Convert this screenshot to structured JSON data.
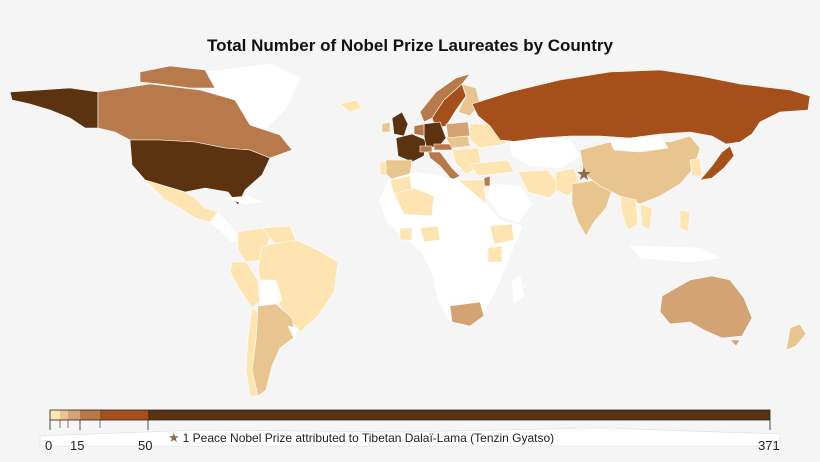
{
  "title": "Total Number of Nobel Prize Laureates by Country",
  "palette": {
    "background": "#f5f5f5",
    "none": "#ffffff",
    "tier1": "#fde4b0",
    "tier2": "#e8c48f",
    "tier3": "#d4a373",
    "tier4": "#b87a4b",
    "tier5": "#a5501a",
    "tier6": "#5c3310",
    "star": "#8b6a4a"
  },
  "legend": {
    "ticks": [
      "0",
      "15",
      "50",
      "371"
    ]
  },
  "note": {
    "icon": "star-icon",
    "text": "1 Peace Nobel Prize attributed to Tibetan Dalaï-Lama (Tenzin Gyatso)"
  }
}
